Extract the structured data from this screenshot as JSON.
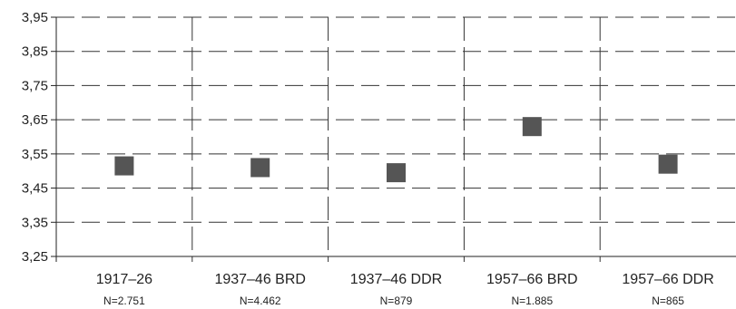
{
  "chart_data": {
    "type": "scatter",
    "title": "",
    "xlabel": "",
    "ylabel": "",
    "ylim": [
      3.25,
      3.95
    ],
    "y_ticks": [
      "3,25",
      "3,35",
      "3,45",
      "3,55",
      "3,65",
      "3,75",
      "3,85",
      "3,95"
    ],
    "y_tick_values": [
      3.25,
      3.35,
      3.45,
      3.55,
      3.65,
      3.75,
      3.85,
      3.95
    ],
    "grid": true,
    "categories": [
      "1917–26",
      "1937–46 BRD",
      "1937–46 DDR",
      "1957–66 BRD",
      "1957–66 DDR"
    ],
    "sample_sizes": [
      "N=2.751",
      "N=4.462",
      "N=879",
      "N=1.885",
      "N=865"
    ],
    "values": [
      3.515,
      3.51,
      3.495,
      3.63,
      3.52
    ],
    "colors": {
      "marker": "#555555",
      "grid": "#333333",
      "axis": "#222222"
    }
  }
}
